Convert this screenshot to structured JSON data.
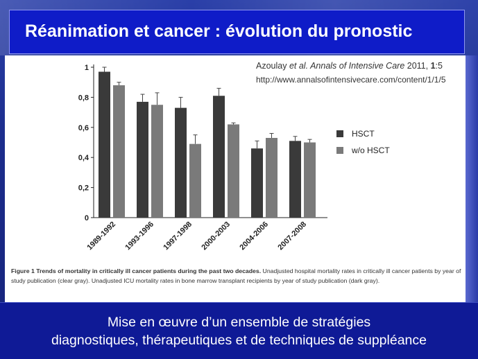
{
  "slide_title": "Réanimation et cancer : évolution du pronostic",
  "reference": {
    "line1_author": "Azoulay",
    "line1_etal": " et al. ",
    "line1_journal": "Annals of Intensive Care",
    "line1_year": " 2011, ",
    "line1_volume": "1",
    "line1_page": ":5",
    "line2_url": "http://www.annalsofintensivecare.com/content/1/1/5"
  },
  "caption": {
    "bold": "Figure 1 Trends of mortality in critically ill cancer patients during the past two decades.",
    "text": " Unadjusted hospital mortality rates in critically ill cancer patients by year of study publication (clear gray). Unadjusted ICU mortality rates in bone marrow transplant recipients by year of study publication (dark gray)."
  },
  "bottom_text": {
    "line1": "Mise en œuvre d’un ensemble de stratégies",
    "line2": "diagnostiques, thérapeutiques et de techniques de suppléance"
  },
  "chart_data": {
    "type": "bar",
    "categories": [
      "1989-1992",
      "1993-1996",
      "1997-1998",
      "2000-2003",
      "2004-2006",
      "2007-2008"
    ],
    "series": [
      {
        "name": "HSCT",
        "values": [
          0.97,
          0.77,
          0.73,
          0.81,
          0.46,
          0.51
        ],
        "errors": [
          0.03,
          0.05,
          0.07,
          0.05,
          0.05,
          0.03
        ],
        "color": "#3a3a3a"
      },
      {
        "name": "w/o HSCT",
        "values": [
          0.88,
          0.75,
          0.49,
          0.62,
          0.53,
          0.5
        ],
        "errors": [
          0.02,
          0.08,
          0.06,
          0.01,
          0.03,
          0.02
        ],
        "color": "#7a7a7a"
      }
    ],
    "yticks": [
      "0",
      "0,2",
      "0,4",
      "0,6",
      "0,8",
      "1"
    ],
    "ylim": [
      0,
      1
    ],
    "legend_position": "right",
    "grid": false
  },
  "colors": {
    "background": "#1c2d8c",
    "title_bar": "#0f1cc8",
    "bottom_bar": "#0f1a96"
  }
}
